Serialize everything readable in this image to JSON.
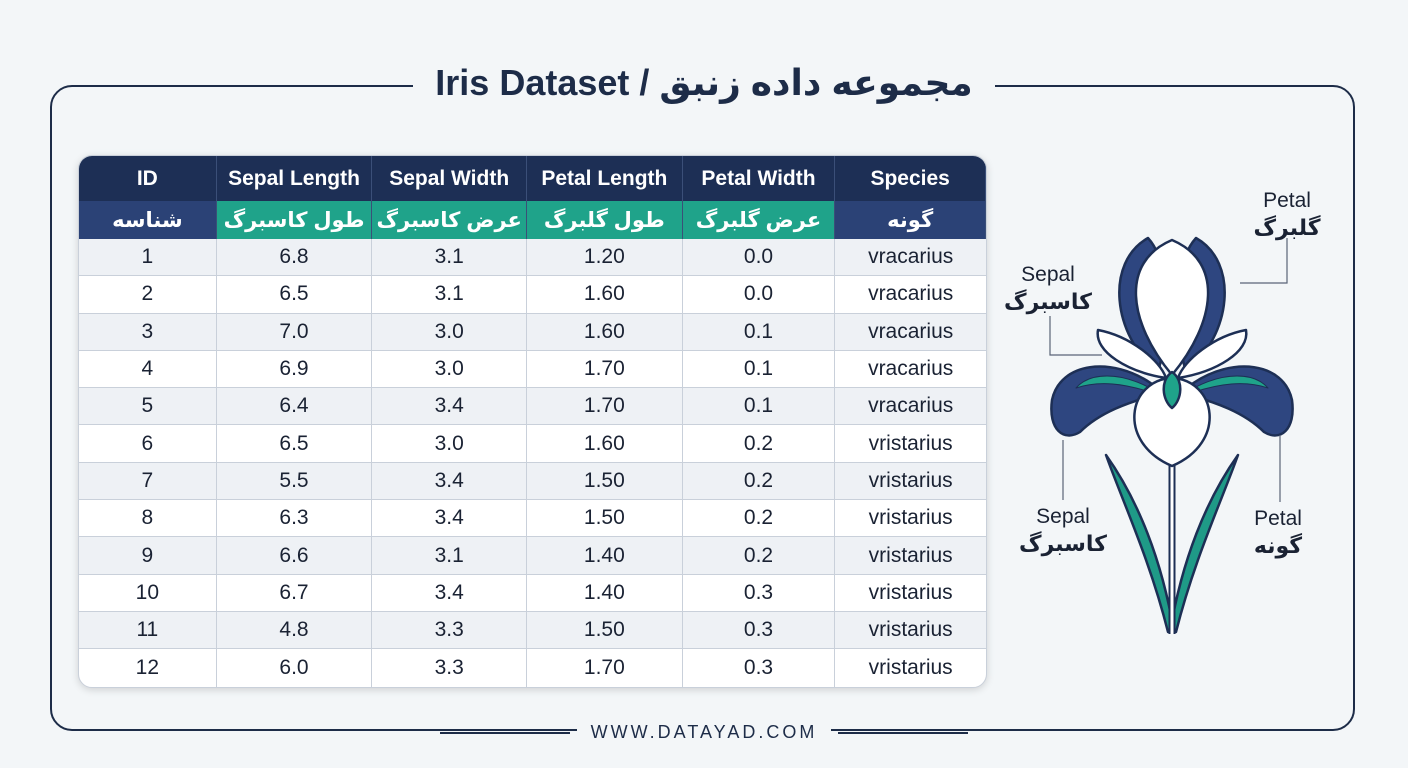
{
  "title": "Iris Dataset / مجموعه داده زنبق",
  "table": {
    "columns": [
      {
        "en": "ID",
        "fa": "شناسه"
      },
      {
        "en": "Sepal Length",
        "fa": "طول کاسبرگ"
      },
      {
        "en": "Sepal Width",
        "fa": "عرض کاسبرگ"
      },
      {
        "en": "Petal Length",
        "fa": "طول گلبرگ"
      },
      {
        "en": "Petal Width",
        "fa": "عرض گلبرگ"
      },
      {
        "en": "Species",
        "fa": "گونه"
      }
    ],
    "rows": [
      [
        "1",
        "6.8",
        "3.1",
        "1.20",
        "0.0",
        "vracarius"
      ],
      [
        "2",
        "6.5",
        "3.1",
        "1.60",
        "0.0",
        "vracarius"
      ],
      [
        "3",
        "7.0",
        "3.0",
        "1.60",
        "0.1",
        "vracarius"
      ],
      [
        "4",
        "6.9",
        "3.0",
        "1.70",
        "0.1",
        "vracarius"
      ],
      [
        "5",
        "6.4",
        "3.4",
        "1.70",
        "0.1",
        "vracarius"
      ],
      [
        "6",
        "6.5",
        "3.0",
        "1.60",
        "0.2",
        "vristarius"
      ],
      [
        "7",
        "5.5",
        "3.4",
        "1.50",
        "0.2",
        "vristarius"
      ],
      [
        "8",
        "6.3",
        "3.4",
        "1.50",
        "0.2",
        "vristarius"
      ],
      [
        "9",
        "6.6",
        "3.1",
        "1.40",
        "0.2",
        "vristarius"
      ],
      [
        "10",
        "6.7",
        "3.4",
        "1.40",
        "0.3",
        "vristarius"
      ],
      [
        "11",
        "4.8",
        "3.3",
        "1.50",
        "0.3",
        "vristarius"
      ],
      [
        "12",
        "6.0",
        "3.3",
        "1.70",
        "0.3",
        "vristarius"
      ]
    ]
  },
  "diagram": {
    "labels": [
      {
        "en": "Petal",
        "fa": "گلبرگ"
      },
      {
        "en": "Sepal",
        "fa": "کاسبرگ"
      },
      {
        "en": "Sepal",
        "fa": "کاسبرگ"
      },
      {
        "en": "Petal",
        "fa": "گونه"
      }
    ]
  },
  "footer": "WWW.DATAYAD.COM"
}
